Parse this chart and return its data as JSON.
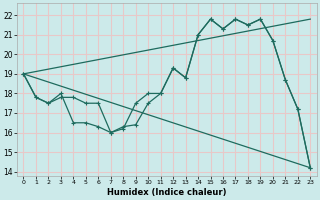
{
  "xlabel": "Humidex (Indice chaleur)",
  "bg_color": "#cceaea",
  "grid_color": "#e8c8c8",
  "line_color": "#1e6b5e",
  "line1_x": [
    0,
    1,
    2,
    3,
    4,
    5,
    6,
    7,
    8,
    9,
    10,
    11,
    12,
    13,
    14,
    15,
    16,
    17,
    18,
    19,
    20,
    21,
    22,
    23
  ],
  "line1_y": [
    19.0,
    17.8,
    17.5,
    17.8,
    17.8,
    17.5,
    17.5,
    16.0,
    16.2,
    17.5,
    18.0,
    18.0,
    19.3,
    18.8,
    21.0,
    21.8,
    21.3,
    21.8,
    21.5,
    21.8,
    20.7,
    18.7,
    17.2,
    14.2
  ],
  "line2_x": [
    0,
    1,
    2,
    3,
    4,
    5,
    6,
    7,
    8,
    9,
    10,
    11,
    12,
    13,
    14,
    15,
    16,
    17,
    18,
    19,
    20,
    21,
    22,
    23
  ],
  "line2_y": [
    19.0,
    17.8,
    17.5,
    18.0,
    16.5,
    16.5,
    16.3,
    16.0,
    16.3,
    16.4,
    17.5,
    18.0,
    19.3,
    18.8,
    21.0,
    21.8,
    21.3,
    21.8,
    21.5,
    21.8,
    20.7,
    18.7,
    17.2,
    14.2
  ],
  "line3_x": [
    0,
    23
  ],
  "line3_y": [
    19.0,
    21.8
  ],
  "line4_x": [
    0,
    23
  ],
  "line4_y": [
    19.0,
    14.2
  ],
  "xlim": [
    -0.5,
    23.5
  ],
  "ylim": [
    13.8,
    22.6
  ],
  "yticks": [
    14,
    15,
    16,
    17,
    18,
    19,
    20,
    21,
    22
  ],
  "xticks": [
    0,
    1,
    2,
    3,
    4,
    5,
    6,
    7,
    8,
    9,
    10,
    11,
    12,
    13,
    14,
    15,
    16,
    17,
    18,
    19,
    20,
    21,
    22,
    23
  ],
  "xtick_labels": [
    "0",
    "1",
    "2",
    "3",
    "4",
    "5",
    "6",
    "7",
    "8",
    "9",
    "10",
    "11",
    "12",
    "13",
    "14",
    "15",
    "16",
    "17",
    "18",
    "19",
    "20",
    "21",
    "22",
    "23"
  ]
}
